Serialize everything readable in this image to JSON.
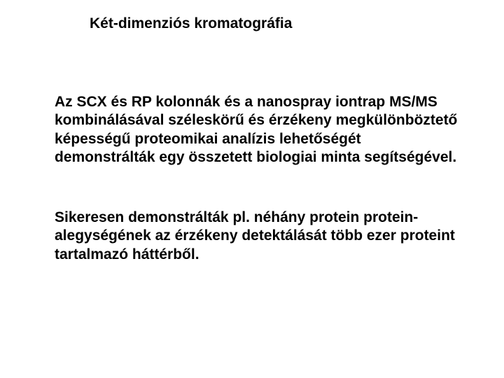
{
  "title": "Két-dimenziós kromatográfia",
  "paragraph1": "Az SCX és RP kolonnák és a nanospray iontrap MS/MS kombinálásával széleskörű és érzékeny megkülönböztető képességű proteomikai analízis lehetőségét demonstrálták egy összetett biologiai minta segítségével.",
  "paragraph2": "Sikeresen demonstrálták pl. néhány protein protein-alegységének az érzékeny detektálását több ezer proteint tartalmazó háttérből.",
  "colors": {
    "background": "#ffffff",
    "text": "#000000"
  },
  "typography": {
    "title_fontsize": 21,
    "body_fontsize": 21,
    "font_weight": "bold",
    "font_family": "Arial"
  }
}
